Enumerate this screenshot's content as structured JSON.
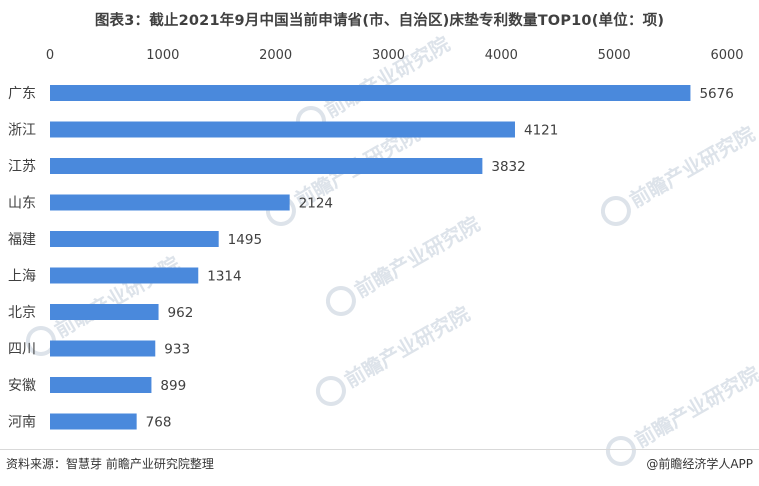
{
  "title": "图表3：截止2021年9月中国当前申请省(市、自治区)床垫专利数量TOP10(单位：项)",
  "footer": {
    "source": "资料来源：智慧芽 前瞻产业研究院整理",
    "credit": "@前瞻经济学人APP"
  },
  "watermark_text": "前瞻产业研究院",
  "colors": {
    "bar": "#4a89dc",
    "axis_text": "#404040",
    "watermark": "#dde3ea"
  },
  "chart_data": {
    "type": "bar",
    "orientation": "horizontal",
    "title": "图表3：截止2021年9月中国当前申请省(市、自治区)床垫专利数量TOP10(单位：项)",
    "categories": [
      "广东",
      "浙江",
      "江苏",
      "山东",
      "福建",
      "上海",
      "北京",
      "四川",
      "安徽",
      "河南"
    ],
    "values": [
      5676,
      4121,
      3832,
      2124,
      1495,
      1314,
      962,
      933,
      899,
      768
    ],
    "xlim": [
      0,
      6000
    ],
    "ticks": [
      0,
      1000,
      2000,
      3000,
      4000,
      5000,
      6000
    ],
    "x_axis_position": "top",
    "grid": false,
    "legend": "none"
  }
}
